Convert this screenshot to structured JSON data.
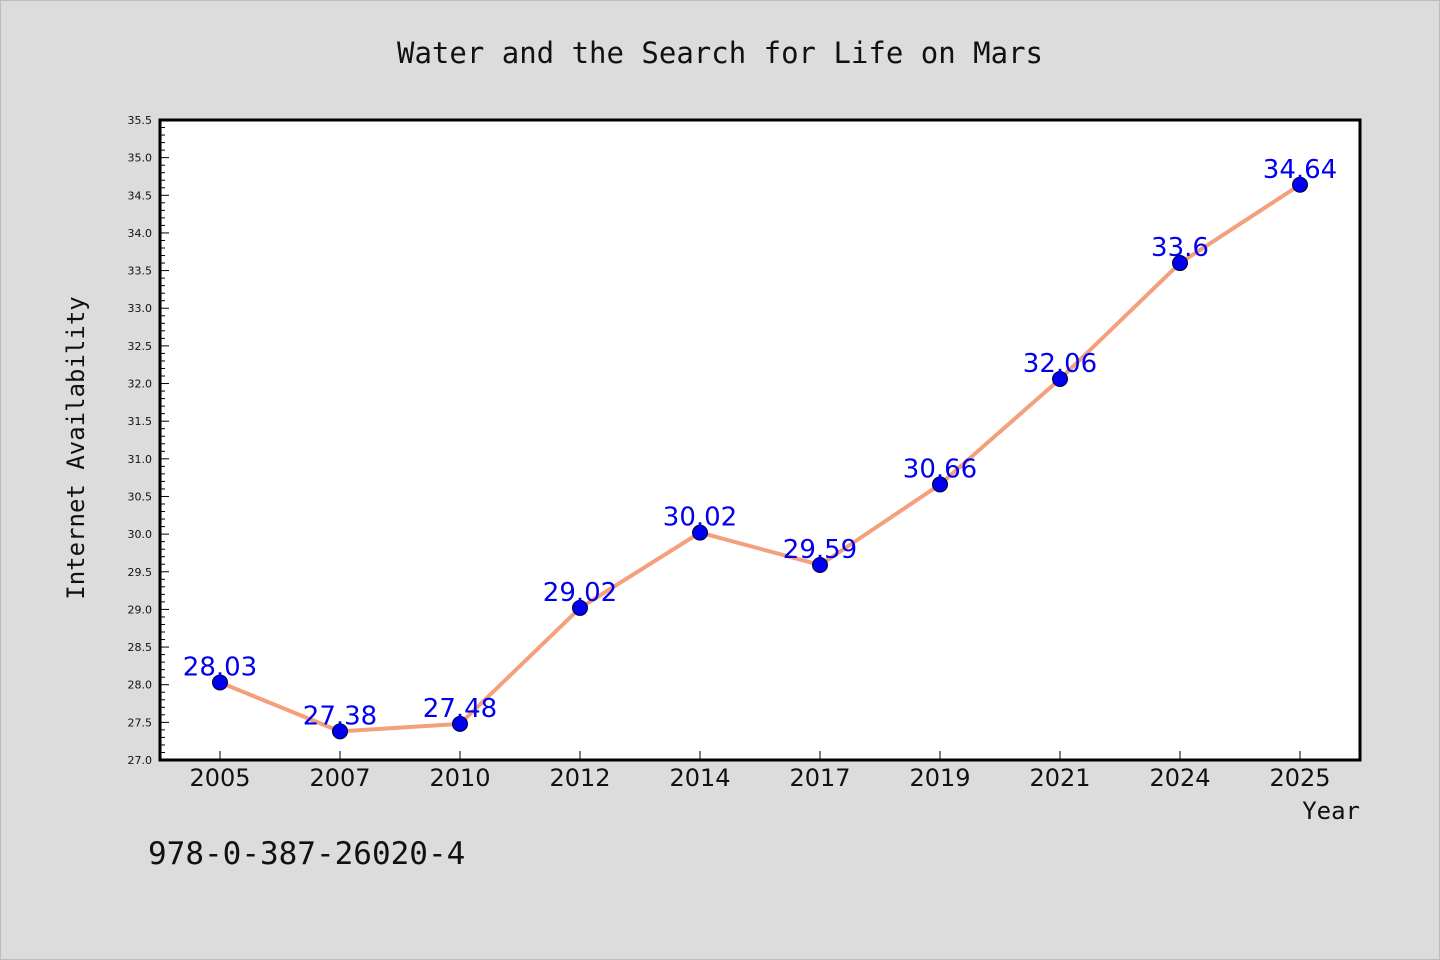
{
  "chart_data": {
    "type": "line",
    "title": "Water and the Search for Life on Mars",
    "xlabel": "Year",
    "ylabel": "Internet Availability",
    "categories": [
      "2005",
      "2007",
      "2010",
      "2012",
      "2014",
      "2017",
      "2019",
      "2021",
      "2024",
      "2025"
    ],
    "series": [
      {
        "values": [
          28.03,
          27.38,
          27.48,
          29.02,
          30.02,
          29.59,
          30.66,
          32.06,
          33.6,
          34.64
        ]
      }
    ],
    "data_labels": [
      "28.03",
      "27.38",
      "27.48",
      "29.02",
      "30.02",
      "29.59",
      "30.66",
      "32.06",
      "33.6",
      "34.64"
    ],
    "ylim": [
      27.0,
      35.5
    ],
    "yticks": [
      "27.0",
      "27.5",
      "28.0",
      "28.5",
      "29.0",
      "29.5",
      "30.0",
      "30.5",
      "31.0",
      "31.5",
      "32.0",
      "32.5",
      "33.0",
      "33.5",
      "34.0",
      "34.5",
      "35.0",
      "35.5"
    ],
    "grid": false,
    "line_color": "#f4a07c",
    "marker_color": "#0000ee",
    "label_color": "#0000ee"
  },
  "footnote": "978-0-387-26020-4"
}
